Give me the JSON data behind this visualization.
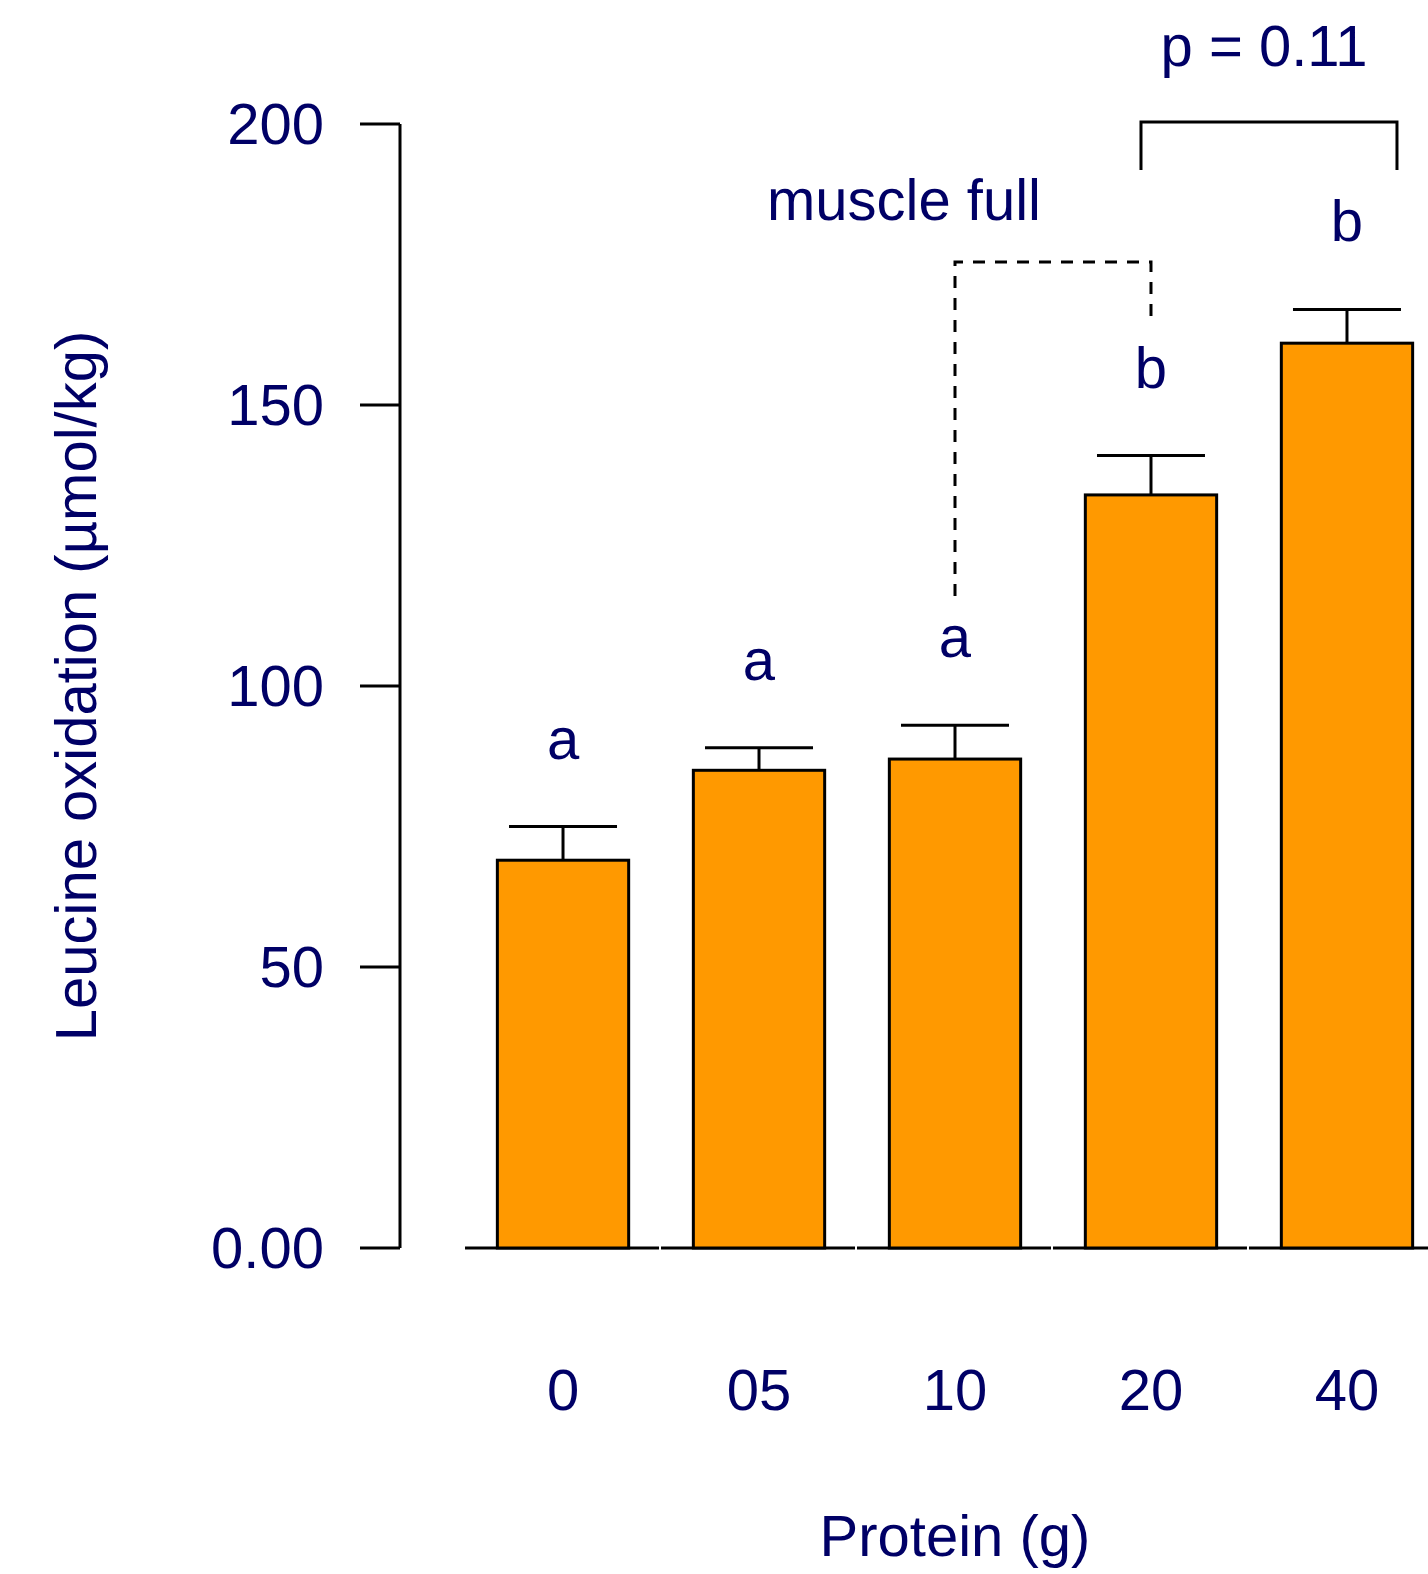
{
  "chart_data": {
    "type": "bar",
    "xlabel": "Protein (g)",
    "ylabel": "Leucine oxidation (µmol/kg)",
    "categories": [
      "0",
      "05",
      "10",
      "20",
      "40"
    ],
    "values": [
      69,
      85,
      87,
      134,
      161
    ],
    "errors": [
      6,
      4,
      6,
      7,
      6
    ],
    "color": "#ff9900",
    "ylim": [
      0,
      200
    ],
    "yticks": [
      {
        "value": 0,
        "label": "0.00"
      },
      50,
      100,
      150,
      200
    ],
    "annotations": [
      "a",
      "a",
      "a",
      "b",
      "b",
      "muscle full",
      "p = 0.11"
    ]
  }
}
